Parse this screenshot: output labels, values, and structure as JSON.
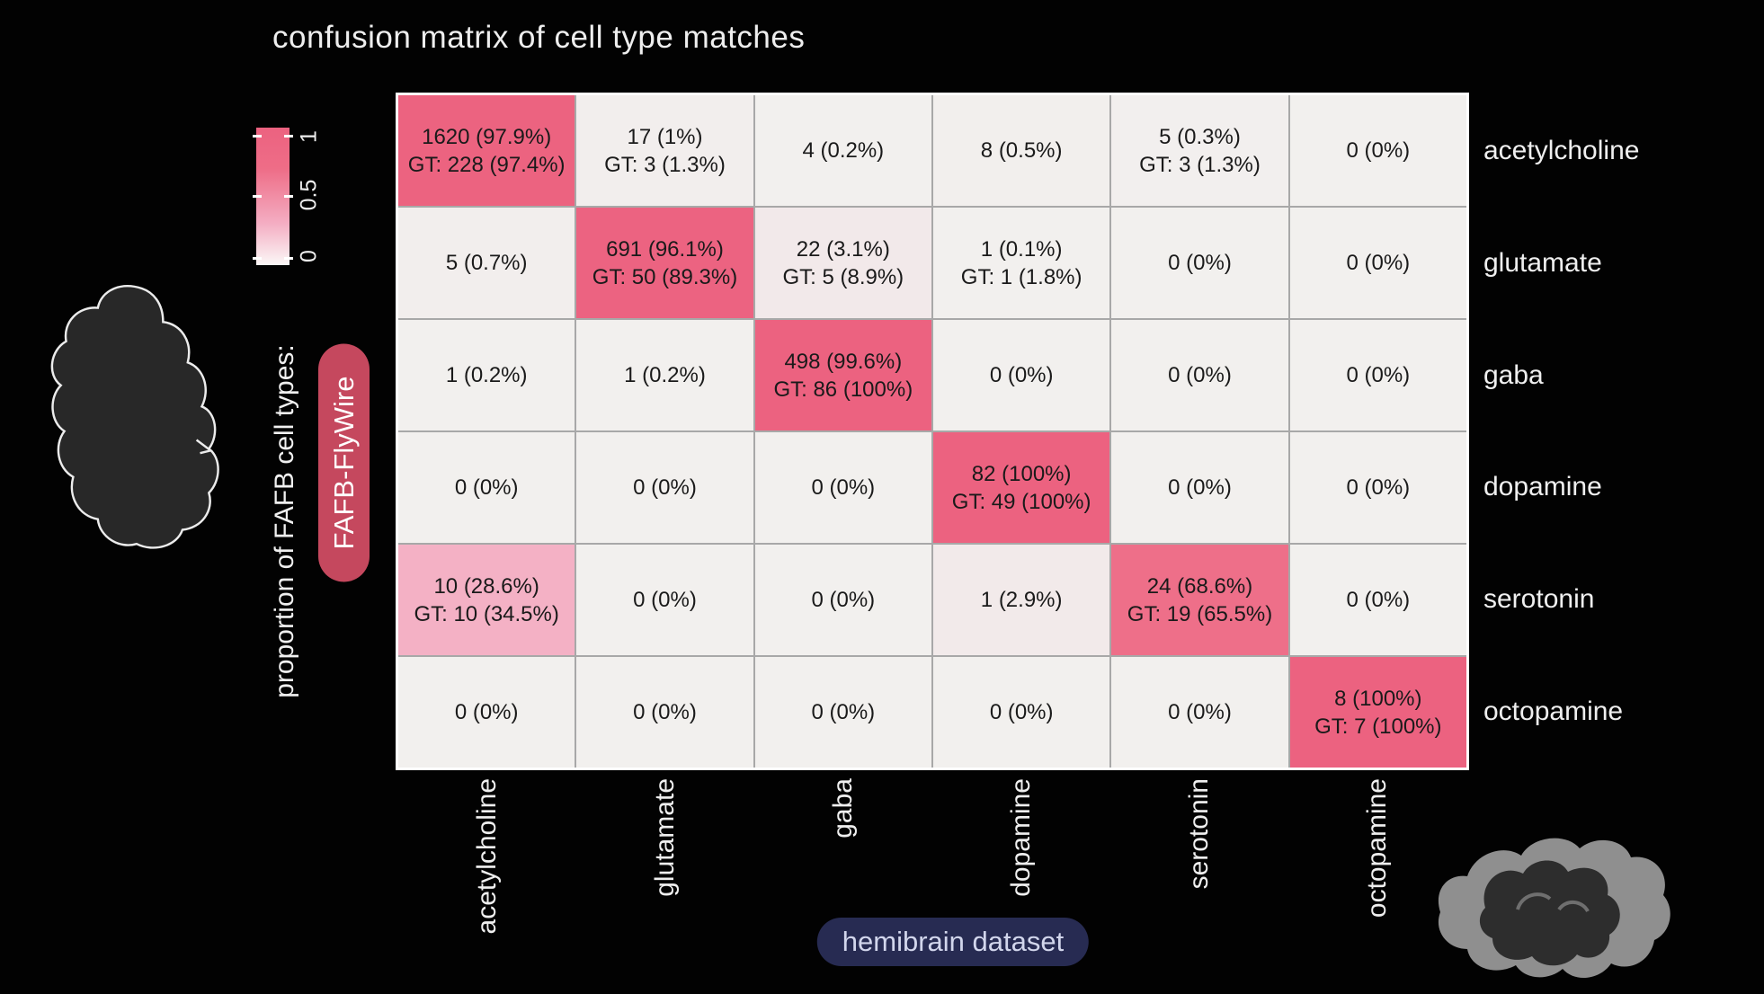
{
  "title": "confusion matrix of cell type matches",
  "colorbar": {
    "tick_labels": [
      "1",
      "0.5",
      "0"
    ]
  },
  "y_axis": {
    "label": "proportion of FAFB cell types:",
    "dataset_badge": "FAFB-FlyWire"
  },
  "x_axis": {
    "dataset_badge": "hemibrain dataset"
  },
  "colors": {
    "background": "#000000",
    "heat_high": "#ec6280",
    "heat_mid": "#ee6d87",
    "heat_low": "#f4aec3",
    "heat_zero": "#f2f0ee",
    "grid_line": "#a8a8a8",
    "matrix_frame": "#ffffff",
    "cell_text": "#1a1a1a",
    "page_text": "#efefef",
    "fafb_badge": "#c5485e",
    "hemibrain_badge": "#272b52"
  },
  "chart_data": {
    "type": "heatmap",
    "title": "confusion matrix of cell type matches",
    "ylabel": "proportion of FAFB cell types: FAFB-FlyWire",
    "xlabel": "hemibrain dataset",
    "colorbar_range": [
      0,
      1
    ],
    "colorbar_ticks": [
      0,
      0.5,
      1
    ],
    "row_labels": [
      "acetylcholine",
      "glutamate",
      "gaba",
      "dopamine",
      "serotonin",
      "octopamine"
    ],
    "col_labels": [
      "acetylcholine",
      "glutamate",
      "gaba",
      "dopamine",
      "serotonin",
      "octopamine"
    ],
    "cells": [
      [
        {
          "lines": [
            "1620 (97.9%)",
            "GT: 228 (97.4%)"
          ],
          "value": 0.979
        },
        {
          "lines": [
            "17 (1%)",
            "GT: 3 (1.3%)"
          ],
          "value": 0.01
        },
        {
          "lines": [
            "4 (0.2%)"
          ],
          "value": 0.002
        },
        {
          "lines": [
            "8 (0.5%)"
          ],
          "value": 0.005
        },
        {
          "lines": [
            "5 (0.3%)",
            "GT: 3 (1.3%)"
          ],
          "value": 0.003
        },
        {
          "lines": [
            "0 (0%)"
          ],
          "value": 0
        }
      ],
      [
        {
          "lines": [
            "5 (0.7%)"
          ],
          "value": 0.007
        },
        {
          "lines": [
            "691 (96.1%)",
            "GT: 50 (89.3%)"
          ],
          "value": 0.961
        },
        {
          "lines": [
            "22 (3.1%)",
            "GT: 5 (8.9%)"
          ],
          "value": 0.031
        },
        {
          "lines": [
            "1 (0.1%)",
            "GT: 1 (1.8%)"
          ],
          "value": 0.001
        },
        {
          "lines": [
            "0 (0%)"
          ],
          "value": 0
        },
        {
          "lines": [
            "0 (0%)"
          ],
          "value": 0
        }
      ],
      [
        {
          "lines": [
            "1 (0.2%)"
          ],
          "value": 0.002
        },
        {
          "lines": [
            "1 (0.2%)"
          ],
          "value": 0.002
        },
        {
          "lines": [
            "498 (99.6%)",
            "GT: 86 (100%)"
          ],
          "value": 0.996
        },
        {
          "lines": [
            "0 (0%)"
          ],
          "value": 0
        },
        {
          "lines": [
            "0 (0%)"
          ],
          "value": 0
        },
        {
          "lines": [
            "0 (0%)"
          ],
          "value": 0
        }
      ],
      [
        {
          "lines": [
            "0 (0%)"
          ],
          "value": 0
        },
        {
          "lines": [
            "0 (0%)"
          ],
          "value": 0
        },
        {
          "lines": [
            "0 (0%)"
          ],
          "value": 0
        },
        {
          "lines": [
            "82 (100%)",
            "GT: 49 (100%)"
          ],
          "value": 1
        },
        {
          "lines": [
            "0 (0%)"
          ],
          "value": 0
        },
        {
          "lines": [
            "0 (0%)"
          ],
          "value": 0
        }
      ],
      [
        {
          "lines": [
            "10 (28.6%)",
            "GT: 10 (34.5%)"
          ],
          "value": 0.286
        },
        {
          "lines": [
            "0 (0%)"
          ],
          "value": 0
        },
        {
          "lines": [
            "0 (0%)"
          ],
          "value": 0
        },
        {
          "lines": [
            "1 (2.9%)"
          ],
          "value": 0.029
        },
        {
          "lines": [
            "24 (68.6%)",
            "GT: 19 (65.5%)"
          ],
          "value": 0.686
        },
        {
          "lines": [
            "0 (0%)"
          ],
          "value": 0
        }
      ],
      [
        {
          "lines": [
            "0 (0%)"
          ],
          "value": 0
        },
        {
          "lines": [
            "0 (0%)"
          ],
          "value": 0
        },
        {
          "lines": [
            "0 (0%)"
          ],
          "value": 0
        },
        {
          "lines": [
            "0 (0%)"
          ],
          "value": 0
        },
        {
          "lines": [
            "0 (0%)"
          ],
          "value": 0
        },
        {
          "lines": [
            "8 (100%)",
            "GT: 7 (100%)"
          ],
          "value": 1
        }
      ]
    ]
  }
}
